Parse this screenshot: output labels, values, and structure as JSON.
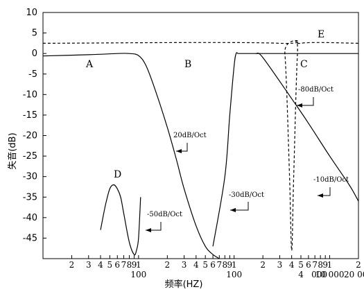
{
  "chart_data": {
    "type": "line",
    "title": "",
    "xlabel": "频率(HZ)",
    "ylabel": "失音(dB)",
    "ylim": [
      -50,
      10
    ],
    "y_ticks": [
      "10",
      "5",
      "0",
      "-5",
      "-10",
      "-15",
      "-20",
      "-25",
      "-30",
      "-35",
      "-40",
      "-45"
    ],
    "x_scale": "log",
    "x_ticks": [
      {
        "x": 20,
        "label": "2"
      },
      {
        "x": 30,
        "label": "3"
      },
      {
        "x": 40,
        "label": "4"
      },
      {
        "x": 50,
        "label": "5"
      },
      {
        "x": 60,
        "label": "6"
      },
      {
        "x": 70,
        "label": "7"
      },
      {
        "x": 80,
        "label": "8"
      },
      {
        "x": 90,
        "label": "9"
      },
      {
        "x": 100,
        "label": "1"
      },
      {
        "x": 200,
        "label": "2"
      },
      {
        "x": 300,
        "label": "3"
      },
      {
        "x": 400,
        "label": "4"
      },
      {
        "x": 500,
        "label": "5"
      },
      {
        "x": 600,
        "label": "6"
      },
      {
        "x": 700,
        "label": "7"
      },
      {
        "x": 800,
        "label": "8"
      },
      {
        "x": 900,
        "label": "9"
      },
      {
        "x": 1000,
        "label": "1"
      },
      {
        "x": 2000,
        "label": "2"
      },
      {
        "x": 3000,
        "label": "3"
      },
      {
        "x": 4000,
        "label": "4"
      },
      {
        "x": 5000,
        "label": "5"
      },
      {
        "x": 6000,
        "label": "6"
      },
      {
        "x": 7000,
        "label": "7"
      },
      {
        "x": 8000,
        "label": "8"
      },
      {
        "x": 9000,
        "label": "9"
      },
      {
        "x": 10000,
        "label": "1"
      },
      {
        "x": 20000,
        "label": "2"
      }
    ],
    "x_decade_labels": [
      {
        "x": 100,
        "label": "100"
      },
      {
        "x": 1000,
        "label": "100"
      },
      {
        "x": 10000,
        "label": "10 000"
      },
      {
        "x": 20000,
        "label": "20 000"
      },
      {
        "x": 5000,
        "label": "4"
      },
      {
        "x": 7800,
        "label": "000"
      }
    ],
    "grid": false,
    "series": [
      {
        "name": "A",
        "style": "solid",
        "x": [
          10,
          30,
          60,
          80,
          100,
          120,
          150,
          200,
          250,
          300,
          400,
          500,
          600,
          700
        ],
        "y": [
          -0.6,
          -0.3,
          0,
          0,
          -0.5,
          -3,
          -9,
          -18,
          -26,
          -33,
          -42,
          -47,
          -49,
          -50
        ]
      },
      {
        "name": "B",
        "style": "solid",
        "x": [
          600,
          800,
          900,
          1000,
          1050,
          1100,
          1200,
          1400,
          2000,
          3000,
          5000,
          10000,
          20000
        ],
        "y": [
          -47,
          -30,
          -15,
          -3,
          0,
          0,
          0,
          0,
          0,
          0,
          0,
          0,
          0
        ]
      },
      {
        "name": "C",
        "style": "solid",
        "x": [
          1700,
          2000,
          4000,
          6000,
          10000,
          16000,
          20000
        ],
        "y": [
          0,
          -1,
          -11,
          -17,
          -25,
          -32,
          -36
        ]
      },
      {
        "name": "D",
        "style": "solid",
        "x": [
          40,
          45,
          50,
          55,
          60,
          65,
          70,
          80,
          90,
          95,
          100,
          105
        ],
        "y": [
          -43,
          -37,
          -33,
          -32,
          -33,
          -35,
          -39,
          -46,
          -49,
          -48,
          -45,
          -35
        ]
      },
      {
        "name": "E",
        "style": "dashed",
        "x": [
          10,
          3000,
          3400,
          3800,
          4000,
          4200,
          4600,
          5000,
          20000
        ],
        "y": [
          2.5,
          2.5,
          0,
          -30,
          -48,
          -30,
          0,
          2.5,
          2.5
        ]
      }
    ],
    "annotations": [
      "20dB/Oct",
      "-30dB/Oct",
      "-50dB/Oct",
      "-80dB/Oct",
      "-10dB/Oct"
    ]
  }
}
